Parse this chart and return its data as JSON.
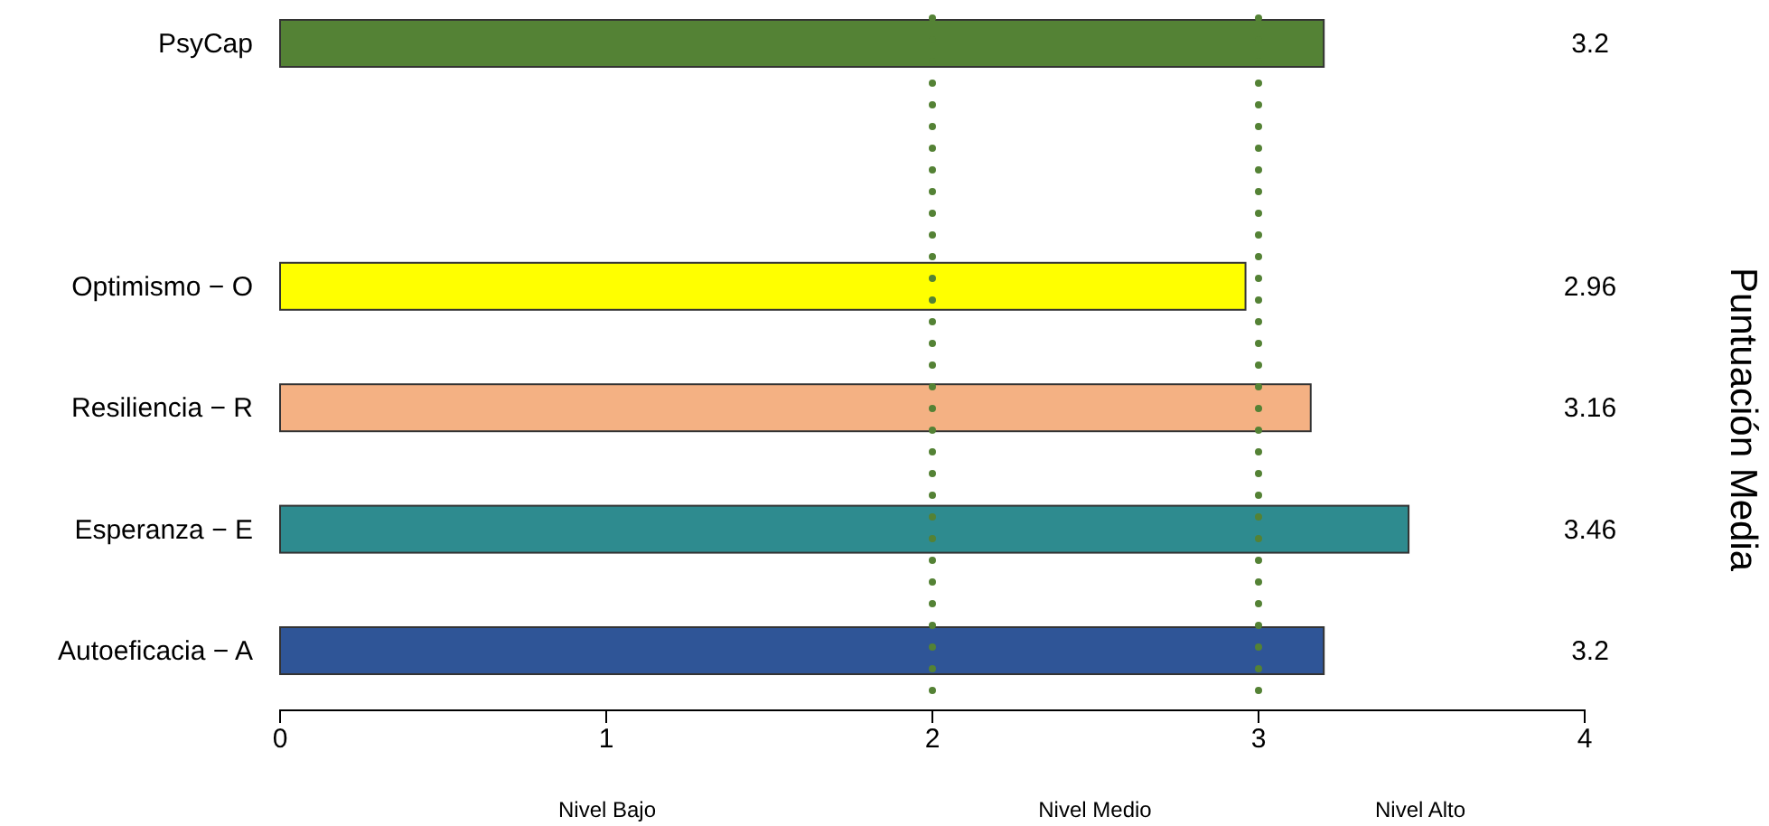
{
  "chart_data": {
    "type": "bar",
    "orientation": "horizontal",
    "categories": [
      "PsyCap",
      null,
      "Optimismo − O",
      "Resiliencia − R",
      "Esperanza − E",
      "Autoeficacia − A"
    ],
    "values": [
      3.2,
      null,
      2.96,
      3.16,
      3.46,
      3.2
    ],
    "colors": [
      "#548235",
      null,
      "#ffff00",
      "#f4b183",
      "#2e8b8f",
      "#2f5597"
    ],
    "data_labels": true,
    "ylabel": "Puntuación Media",
    "xlim": [
      0,
      4
    ],
    "xticks": [
      0,
      1,
      2,
      3,
      4
    ],
    "ref_lines": [
      {
        "axis": "x",
        "value": 2,
        "color": "#548235",
        "line_style": "dotted"
      },
      {
        "axis": "x",
        "value": 3,
        "color": "#548235",
        "line_style": "dotted"
      }
    ],
    "annotations": [
      "Nivel Bajo",
      "Nivel Medio",
      "Nivel Alto"
    ]
  }
}
